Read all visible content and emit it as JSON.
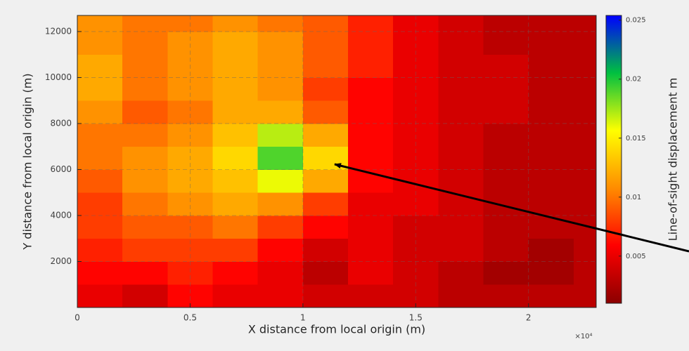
{
  "chart_data": {
    "type": "heatmap",
    "x_label": "X distance from local origin (m)",
    "y_label": "Y distance from local origin (m)",
    "colorbar_label": "Line-of-sight displacement m",
    "x_exponent_label": "×10⁴",
    "xlim": [
      0,
      2.3
    ],
    "ylim": [
      0,
      12700
    ],
    "xticks": [
      0,
      0.5,
      1,
      1.5,
      2
    ],
    "yticks": [
      2000,
      4000,
      6000,
      8000,
      10000,
      12000
    ],
    "grid": true,
    "x_edges": [
      0,
      0.2,
      0.4,
      0.6,
      0.8,
      1.0,
      1.2,
      1.4,
      1.6,
      1.8,
      2.0,
      2.2,
      2.3
    ],
    "y_edges": [
      0,
      1000,
      2000,
      3000,
      4000,
      5000,
      6000,
      7000,
      8000,
      9000,
      10000,
      11000,
      12000,
      12700
    ],
    "z": [
      [
        0.005,
        0.004,
        0.006,
        0.005,
        0.005,
        0.004,
        0.004,
        0.004,
        0.003,
        0.003,
        0.003,
        0.003
      ],
      [
        0.006,
        0.006,
        0.007,
        0.006,
        0.005,
        0.003,
        0.005,
        0.004,
        0.003,
        0.002,
        0.002,
        0.003
      ],
      [
        0.007,
        0.008,
        0.008,
        0.008,
        0.006,
        0.004,
        0.005,
        0.004,
        0.004,
        0.003,
        0.002,
        0.003
      ],
      [
        0.008,
        0.009,
        0.009,
        0.01,
        0.008,
        0.006,
        0.005,
        0.004,
        0.004,
        0.003,
        0.003,
        0.003
      ],
      [
        0.008,
        0.01,
        0.011,
        0.012,
        0.011,
        0.008,
        0.005,
        0.005,
        0.004,
        0.003,
        0.003,
        0.003
      ],
      [
        0.009,
        0.011,
        0.012,
        0.013,
        0.016,
        0.012,
        0.006,
        0.005,
        0.004,
        0.003,
        0.003,
        0.003
      ],
      [
        0.01,
        0.011,
        0.012,
        0.014,
        0.019,
        0.014,
        0.006,
        0.005,
        0.004,
        0.003,
        0.003,
        0.003
      ],
      [
        0.01,
        0.01,
        0.011,
        0.013,
        0.017,
        0.012,
        0.006,
        0.005,
        0.004,
        0.003,
        0.003,
        0.003
      ],
      [
        0.011,
        0.009,
        0.01,
        0.012,
        0.012,
        0.009,
        0.006,
        0.005,
        0.004,
        0.004,
        0.003,
        0.003
      ],
      [
        0.012,
        0.01,
        0.011,
        0.012,
        0.011,
        0.008,
        0.006,
        0.005,
        0.004,
        0.004,
        0.003,
        0.003
      ],
      [
        0.012,
        0.01,
        0.011,
        0.012,
        0.011,
        0.009,
        0.007,
        0.005,
        0.004,
        0.004,
        0.003,
        0.003
      ],
      [
        0.011,
        0.01,
        0.011,
        0.012,
        0.011,
        0.009,
        0.007,
        0.005,
        0.004,
        0.003,
        0.003,
        0.003
      ],
      [
        0.011,
        0.01,
        0.01,
        0.011,
        0.01,
        0.009,
        0.007,
        0.005,
        0.004,
        0.003,
        0.003,
        0.003
      ]
    ],
    "clim": [
      0.001,
      0.0254
    ],
    "colorbar_ticks": [
      0.005,
      0.01,
      0.015,
      0.02,
      0.025
    ],
    "colormap": [
      "#8b0000",
      "#ff0000",
      "#ff8c00",
      "#ffff00",
      "#00c040",
      "#0000ff"
    ]
  }
}
